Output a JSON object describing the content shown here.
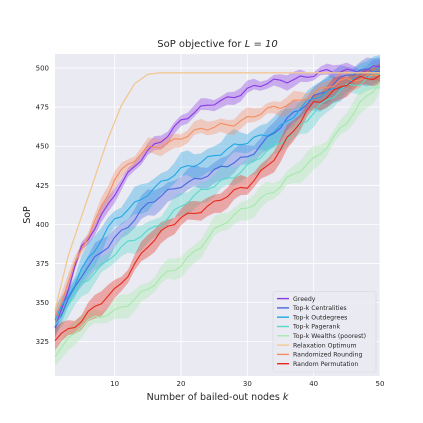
{
  "chart_data": {
    "type": "line",
    "title": "SoP objective for ",
    "title_math": "L = 10",
    "xlabel": "Number of bailed-out nodes ",
    "xlabel_math": "k",
    "ylabel": "SoP",
    "xlim": [
      1,
      50
    ],
    "ylim": [
      303,
      509
    ],
    "xticks": [
      10,
      20,
      30,
      40,
      50
    ],
    "yticks": [
      325,
      350,
      375,
      400,
      425,
      450,
      475,
      500
    ],
    "grid": true,
    "background": "#eaeaf2",
    "legend_position": "lower-right",
    "series": [
      {
        "name": "Greedy",
        "color": "#8b3ae6",
        "band": 5,
        "x": [
          1,
          5,
          10,
          15,
          20,
          25,
          30,
          35,
          40,
          45,
          50
        ],
        "y": [
          332,
          385,
          420,
          447,
          466,
          478,
          486,
          492,
          496,
          498,
          501
        ]
      },
      {
        "name": "Top-k Centralities",
        "color": "#4a67e0",
        "band": 9,
        "x": [
          1,
          5,
          10,
          15,
          20,
          25,
          30,
          35,
          40,
          45,
          50
        ],
        "y": [
          336,
          367,
          392,
          412,
          426,
          433,
          444,
          462,
          482,
          495,
          500
        ]
      },
      {
        "name": "Top-k Outdegrees",
        "color": "#22a7e6",
        "band": 10,
        "x": [
          1,
          5,
          10,
          15,
          20,
          25,
          30,
          35,
          40,
          45,
          50
        ],
        "y": [
          338,
          372,
          402,
          421,
          434,
          445,
          452,
          463,
          480,
          491,
          498
        ]
      },
      {
        "name": "Top-k Pagerank",
        "color": "#56d8cb",
        "band": 9,
        "x": [
          1,
          5,
          10,
          15,
          20,
          25,
          30,
          35,
          40,
          45,
          50
        ],
        "y": [
          334,
          362,
          382,
          395,
          412,
          425,
          437,
          452,
          472,
          488,
          497
        ]
      },
      {
        "name": "Top-k Wealths (poorest)",
        "color": "#a5eaaa",
        "band": 8,
        "x": [
          1,
          5,
          10,
          15,
          20,
          25,
          30,
          35,
          40,
          45,
          50
        ],
        "y": [
          318,
          335,
          345,
          358,
          375,
          395,
          412,
          424,
          442,
          465,
          492
        ]
      },
      {
        "name": "Relaxation Optimum",
        "color": "#f2c894",
        "band": 0,
        "x": [
          1,
          3,
          5,
          7,
          9,
          11,
          13,
          15,
          17,
          20,
          25,
          30,
          35,
          40,
          45,
          50
        ],
        "y": [
          345,
          380,
          405,
          430,
          455,
          476,
          490,
          496,
          497,
          497,
          497,
          497,
          497,
          497,
          497,
          497
        ]
      },
      {
        "name": "Randomized Rounding",
        "color": "#f58d62",
        "band": 6,
        "x": [
          1,
          5,
          10,
          15,
          20,
          25,
          30,
          35,
          40,
          45,
          50
        ],
        "y": [
          340,
          384,
          430,
          448,
          456,
          462,
          468,
          475,
          484,
          492,
          497
        ]
      },
      {
        "name": "Random Permutation",
        "color": "#e8281a",
        "band": 8,
        "x": [
          1,
          5,
          10,
          15,
          20,
          25,
          30,
          35,
          40,
          45,
          50
        ],
        "y": [
          328,
          338,
          358,
          386,
          405,
          413,
          425,
          447,
          478,
          490,
          495
        ]
      }
    ]
  }
}
